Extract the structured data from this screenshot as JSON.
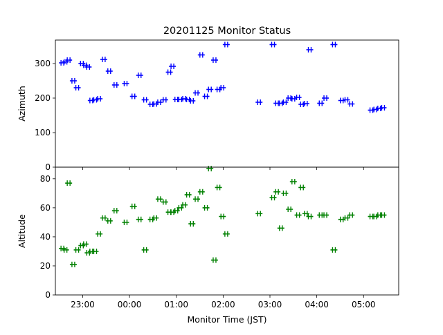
{
  "chart_data": [
    {
      "type": "scatter",
      "title": "20201125 Monitor Status",
      "ylabel": "Azimuth",
      "ylim": [
        0,
        368
      ],
      "yticks": [
        0,
        100,
        200,
        300
      ],
      "marker_color": "#0000ff",
      "grid": false,
      "series": [
        {
          "x": [
            "22:34",
            "22:38",
            "22:42",
            "22:48",
            "22:53",
            "22:59",
            "23:03",
            "23:07",
            "23:11",
            "23:16",
            "23:21",
            "23:27",
            "23:34",
            "23:42",
            "23:55",
            "24:05",
            "24:13",
            "24:20",
            "24:28",
            "24:33",
            "24:38",
            "24:45",
            "24:51",
            "24:55",
            "25:00",
            "25:05",
            "25:10",
            "25:15",
            "25:20",
            "25:26",
            "25:32",
            "25:38",
            "25:43",
            "25:49",
            "25:54",
            "25:59",
            "26:04",
            "26:46",
            "27:04",
            "27:09",
            "27:14",
            "27:19",
            "27:25",
            "27:30",
            "27:36",
            "27:41",
            "27:46",
            "27:51",
            "28:05",
            "28:11",
            "28:22",
            "28:32",
            "28:38",
            "28:44",
            "29:10",
            "29:15",
            "29:20",
            "29:25"
          ],
          "y": [
            302,
            305,
            310,
            250,
            230,
            300,
            295,
            290,
            193,
            195,
            198,
            312,
            278,
            238,
            242,
            205,
            266,
            195,
            182,
            183,
            188,
            195,
            275,
            292,
            196,
            196,
            198,
            196,
            192,
            215,
            325,
            205,
            225,
            310,
            225,
            230,
            355,
            188,
            355,
            185,
            185,
            188,
            200,
            198,
            202,
            182,
            184,
            340,
            185,
            200,
            355,
            193,
            195,
            183,
            165,
            167,
            170,
            172
          ]
        }
      ]
    },
    {
      "type": "scatter",
      "xlabel": "Monitor Time (JST)",
      "ylabel": "Altitude",
      "ylim": [
        0,
        88
      ],
      "yticks": [
        0,
        20,
        40,
        60,
        80
      ],
      "xlim": [
        "22:25",
        "29:45"
      ],
      "xticks": [
        "23:00",
        "00:00",
        "01:00",
        "02:00",
        "03:00",
        "04:00",
        "05:00"
      ],
      "marker_color": "#008000",
      "grid": false,
      "series": [
        {
          "x": [
            "22:34",
            "22:38",
            "22:42",
            "22:48",
            "22:53",
            "22:59",
            "23:03",
            "23:07",
            "23:11",
            "23:16",
            "23:21",
            "23:27",
            "23:34",
            "23:42",
            "23:55",
            "24:05",
            "24:13",
            "24:20",
            "24:28",
            "24:33",
            "24:38",
            "24:45",
            "24:51",
            "24:55",
            "25:00",
            "25:05",
            "25:10",
            "25:15",
            "25:20",
            "25:26",
            "25:32",
            "25:38",
            "25:43",
            "25:49",
            "25:54",
            "25:59",
            "26:04",
            "26:46",
            "27:04",
            "27:09",
            "27:14",
            "27:19",
            "27:25",
            "27:30",
            "27:36",
            "27:41",
            "27:46",
            "27:51",
            "28:05",
            "28:11",
            "28:22",
            "28:32",
            "28:38",
            "28:44",
            "29:10",
            "29:15",
            "29:20",
            "29:25"
          ],
          "y": [
            32,
            31,
            77,
            21,
            31,
            34,
            35,
            29,
            30,
            30,
            42,
            53,
            51,
            58,
            50,
            61,
            52,
            31,
            52,
            53,
            66,
            64,
            57,
            57,
            58,
            60,
            62,
            69,
            49,
            66,
            71,
            60,
            87,
            24,
            74,
            54,
            42,
            56,
            67,
            71,
            46,
            70,
            59,
            78,
            55,
            74,
            56,
            54,
            55,
            55,
            31,
            52,
            53,
            55,
            54,
            54,
            55,
            55
          ]
        }
      ]
    }
  ]
}
